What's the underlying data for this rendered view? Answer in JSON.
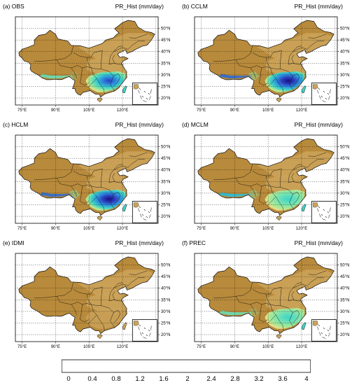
{
  "colors": {
    "levels": [
      "#a37630",
      "#b88a3b",
      "#cba35a",
      "#ddc275",
      "#e7dc8a",
      "#d4e589",
      "#b8e88f",
      "#90e6a4",
      "#66dfb8",
      "#3fd5c7",
      "#29bcd8",
      "#2e94dd",
      "#2f6ad3",
      "#2c42c0",
      "#241fa6",
      "#1a0e86"
    ],
    "ocean": "#ffffff",
    "border": "#111111"
  },
  "panels": [
    {
      "title": "(a) OBS",
      "variable": "PR_Hist (mm/day)",
      "wet_intensity": 0.78,
      "tibet_wet": 0.25
    },
    {
      "title": "(b) CCLM",
      "variable": "PR_Hist (mm/day)",
      "wet_intensity": 0.92,
      "tibet_wet": 0.75
    },
    {
      "title": "(c) HCLM",
      "variable": "PR_Hist (mm/day)",
      "wet_intensity": 1.0,
      "tibet_wet": 0.8
    },
    {
      "title": "(d) MCLM",
      "variable": "PR_Hist (mm/day)",
      "wet_intensity": 0.55,
      "tibet_wet": 0.65
    },
    {
      "title": "(e) IDMI",
      "variable": "PR_Hist (mm/day)",
      "wet_intensity": 0.05,
      "tibet_wet": 0.0
    },
    {
      "title": "(f) PREC",
      "variable": "PR_Hist (mm/day)",
      "wet_intensity": 0.5,
      "tibet_wet": 0.45
    }
  ],
  "axes": {
    "lat_labels": [
      "20°N",
      "25°N",
      "30°N",
      "35°N",
      "40°N",
      "45°N",
      "50°N"
    ],
    "lon_labels": [
      "75°E",
      "90°E",
      "105°E",
      "120°E"
    ]
  },
  "colorbar": {
    "labels": [
      "0",
      "0.4",
      "0.8",
      "1.2",
      "1.6",
      "2",
      "2.4",
      "2.8",
      "3.2",
      "3.6",
      "4"
    ]
  }
}
